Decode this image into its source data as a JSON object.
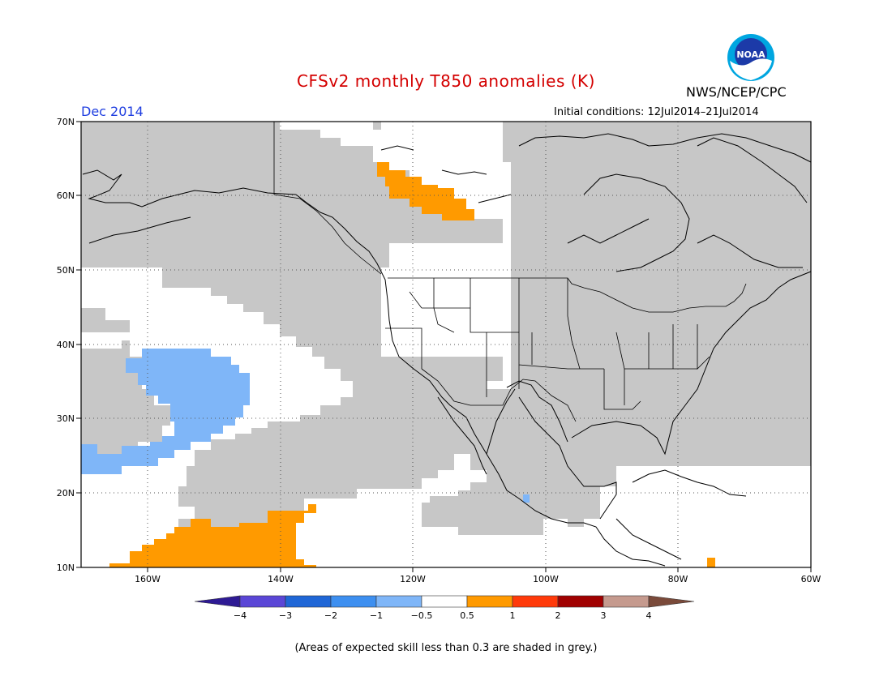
{
  "title": "CFSv2 monthly T850 anomalies (K)",
  "month_label": "Dec 2014",
  "initial_conditions": "Initial conditions: 12Jul2014–21Jul2014",
  "agency": "NWS/NCEP/CPC",
  "logo": {
    "text": "NOAA",
    "icon": "noaa-logo"
  },
  "map": {
    "lat_labels": [
      "70N",
      "60N",
      "50N",
      "40N",
      "30N",
      "20N",
      "10N"
    ],
    "lon_labels": [
      "160W",
      "140W",
      "120W",
      "100W",
      "80W",
      "60W"
    ],
    "lat_range": [
      10,
      70
    ],
    "lon_range": [
      -170,
      -60
    ],
    "gridlines": "dotted"
  },
  "colorbar": {
    "ticks": [
      "−4",
      "−3",
      "−2",
      "−1",
      "−0.5",
      "0.5",
      "1",
      "2",
      "3",
      "4"
    ],
    "colors": [
      "#2e1a94",
      "#5a46d6",
      "#1f66d6",
      "#3d8ff0",
      "#7fb6f8",
      "#ffffff",
      "#ff9a00",
      "#ff3a0a",
      "#a00000",
      "#c59a8e",
      "#7a4a3a"
    ]
  },
  "colors": {
    "skill_grey": "#c7c7c7",
    "land_line": "#000000"
  },
  "note": "(Areas of expected skill less than 0.3 are shaded in grey.)"
}
